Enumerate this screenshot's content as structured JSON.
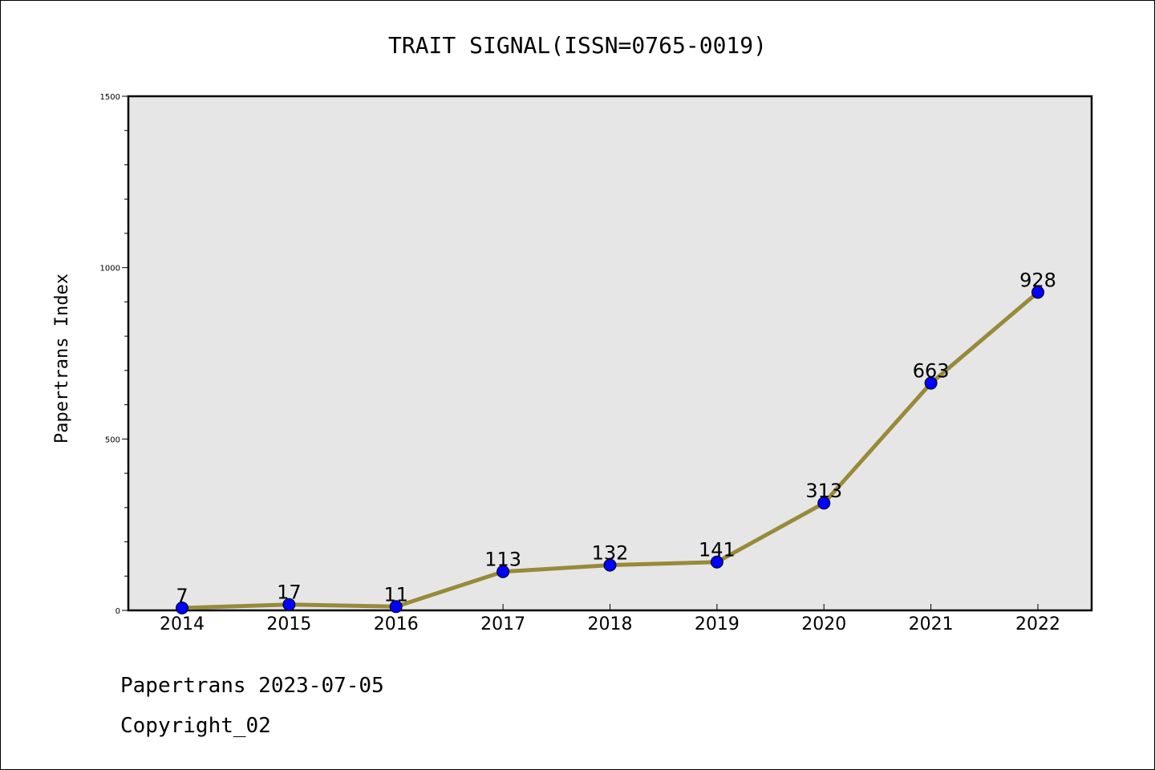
{
  "chart_data": {
    "type": "line",
    "title": "TRAIT SIGNAL(ISSN=0765-0019)",
    "xlabel": "",
    "ylabel": "Papertrans Index",
    "categories": [
      "2014",
      "2015",
      "2016",
      "2017",
      "2018",
      "2019",
      "2020",
      "2021",
      "2022"
    ],
    "series": [
      {
        "values": [
          7,
          17,
          11,
          113,
          132,
          141,
          313,
          663,
          928
        ]
      }
    ],
    "ylim": [
      0,
      1500
    ],
    "yticks": [
      "0",
      "500",
      "1000",
      "1500"
    ],
    "grid": false,
    "plot_background": "#e6e6e6",
    "line_color": "#978a3a",
    "marker_color": "#0000ff"
  },
  "footer": {
    "line1": "Papertrans 2023-07-05",
    "line2": "Copyright_02"
  }
}
